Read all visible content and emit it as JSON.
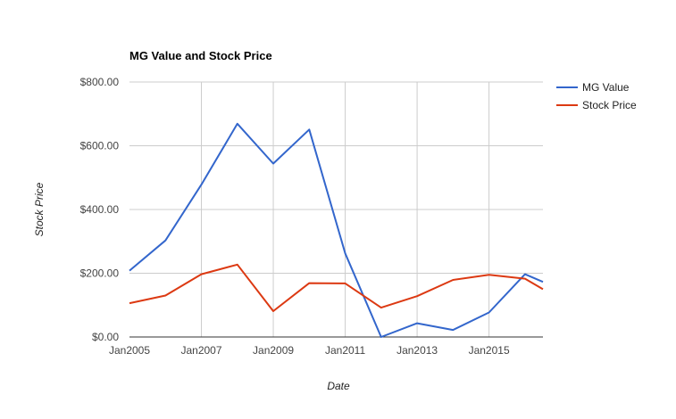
{
  "chart_data": {
    "type": "line",
    "title": "MG Value and Stock Price",
    "xlabel": "Date",
    "ylabel": "Stock Price",
    "ylim": [
      0,
      800
    ],
    "xlim": [
      2005,
      2016.5
    ],
    "y_ticks": [
      0,
      200,
      400,
      600,
      800
    ],
    "y_tick_labels": [
      "$0.00",
      "$200.00",
      "$400.00",
      "$600.00",
      "$800.00"
    ],
    "x_ticks": [
      2005,
      2007,
      2009,
      2011,
      2013,
      2015
    ],
    "x_tick_labels": [
      "Jan2005",
      "Jan2007",
      "Jan2009",
      "Jan2011",
      "Jan2013",
      "Jan2015"
    ],
    "grid": true,
    "legend_position": "right",
    "x": [
      2005,
      2006,
      2007,
      2008,
      2009,
      2010,
      2011,
      2012,
      2013,
      2014,
      2015,
      2016,
      2016.5
    ],
    "series": [
      {
        "name": "MG Value",
        "color": "#3366cc",
        "values": [
          208,
          303,
          478,
          669,
          544,
          651,
          262,
          0,
          43,
          22,
          77,
          197,
          173
        ]
      },
      {
        "name": "Stock Price",
        "color": "#dc3912",
        "values": [
          106,
          130,
          197,
          227,
          81,
          169,
          168,
          92,
          128,
          179,
          195,
          183,
          150
        ]
      }
    ]
  }
}
